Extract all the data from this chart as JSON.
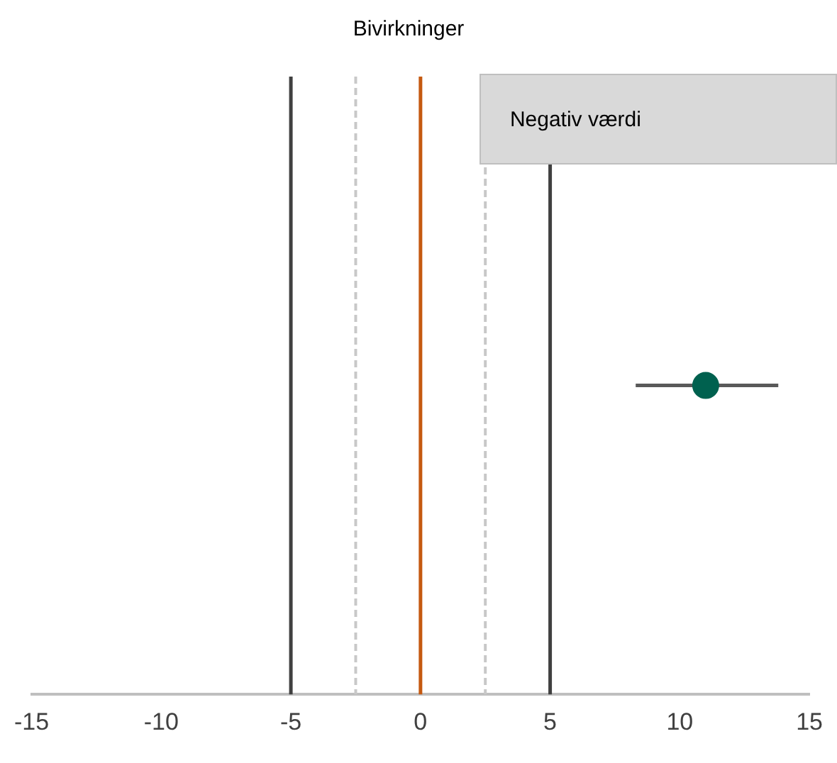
{
  "chart_data": {
    "type": "scatter",
    "title": "Bivirkninger",
    "orientation": "horizontal",
    "categories": [
      null
    ],
    "series": [
      {
        "color": "#00614f",
        "values": [
          11
        ],
        "errors": [
          [
            8.3,
            13.8
          ]
        ]
      }
    ],
    "xlim": [
      -15,
      15
    ],
    "xticks": [
      -15,
      -10,
      -5,
      0,
      5,
      10,
      15
    ],
    "tick_labels": "x",
    "grid": false,
    "legend": false,
    "marker": "circle",
    "ref_lines": [
      {
        "axis": "x",
        "value": -5,
        "color": "#404040",
        "line_style": "solid"
      },
      {
        "axis": "x",
        "value": -2.5,
        "color": "#c8c8c8",
        "line_style": "dashed"
      },
      {
        "axis": "x",
        "value": 0,
        "color": "#c55a11",
        "line_style": "solid"
      },
      {
        "axis": "x",
        "value": 2.5,
        "color": "#c8c8c8",
        "line_style": "dashed"
      },
      {
        "axis": "x",
        "value": 5,
        "color": "#404040",
        "line_style": "solid"
      }
    ],
    "annotations": [
      "Negativ værdi"
    ]
  }
}
